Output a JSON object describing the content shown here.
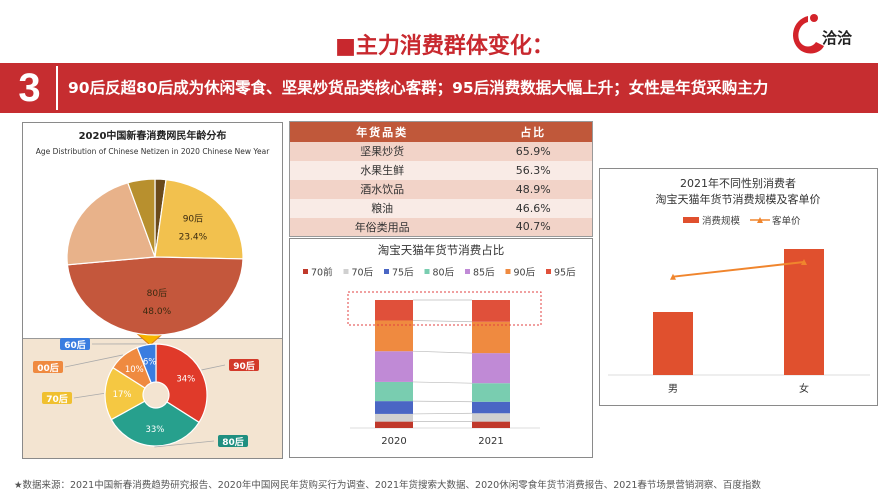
{
  "header": {
    "title": "■主力消费群体变化：",
    "logo_text": "洽洽"
  },
  "banner": {
    "number": "3",
    "text": "90后反超80后成为休闲零食、坚果炒货品类核心客群；95后消费数据大幅上升；女性是年货采购主力"
  },
  "colors": {
    "brand_red": "#c62d30",
    "table_header": "#c0583a"
  },
  "chart_data": [
    {
      "type": "pie",
      "title": "2020中国新春消费网民年龄分布",
      "subtitle": "Age Distribution of Chinese Netizen in 2020 Chinese New Year",
      "slices": [
        {
          "label": "",
          "value": 2,
          "color": "#6b4a1a"
        },
        {
          "label": "90后",
          "value": 23.4,
          "display": "23.4%",
          "color": "#f2c14e"
        },
        {
          "label": "80后",
          "value": 48.0,
          "display": "48.0%",
          "color": "#c4573c"
        },
        {
          "label": "",
          "value": 21.6,
          "color": "#e8b28a"
        },
        {
          "label": "",
          "value": 5,
          "color": "#b8902e"
        }
      ]
    },
    {
      "type": "pie",
      "style": "donut",
      "slices": [
        {
          "label": "90后",
          "value": 34,
          "display": "34%",
          "color": "#e03a2a"
        },
        {
          "label": "80后",
          "value": 33,
          "display": "33%",
          "color": "#27a08d"
        },
        {
          "label": "70后",
          "value": 17,
          "display": "17%",
          "color": "#f5c842"
        },
        {
          "label": "00后",
          "value": 10,
          "display": "10%",
          "color": "#ef8a40"
        },
        {
          "label": "60后",
          "value": 6,
          "display": "6%",
          "color": "#3a7de0"
        }
      ]
    },
    {
      "type": "table",
      "columns": [
        "年货品类",
        "占比"
      ],
      "rows": [
        [
          "坚果炒货",
          "65.9%"
        ],
        [
          "水果生鲜",
          "56.3%"
        ],
        [
          "酒水饮品",
          "48.9%"
        ],
        [
          "粮油",
          "46.6%"
        ],
        [
          "年俗类用品",
          "40.7%"
        ]
      ]
    },
    {
      "type": "bar",
      "stacked": true,
      "percent": true,
      "title": "淘宝天猫年货节消费占比",
      "legend_position": "top",
      "categories": [
        "2020",
        "2021"
      ],
      "series": [
        {
          "name": "70前",
          "values": [
            5,
            5
          ],
          "color": "#c0392b"
        },
        {
          "name": "70后",
          "values": [
            6,
            6.5
          ],
          "color": "#d0d0d0"
        },
        {
          "name": "75后",
          "values": [
            10,
            9
          ],
          "color": "#4a66c4"
        },
        {
          "name": "80后",
          "values": [
            15,
            14.5
          ],
          "color": "#79cdb0"
        },
        {
          "name": "85后",
          "values": [
            24,
            23.5
          ],
          "color": "#c08ad6"
        },
        {
          "name": "90后",
          "values": [
            24,
            24.5
          ],
          "color": "#ef8a40"
        },
        {
          "name": "95后",
          "values": [
            16,
            17
          ],
          "color": "#e0503a"
        }
      ]
    },
    {
      "type": "bar",
      "title": "2021年不同性别消费者\n淘宝天猫年货节消费规模及客单价",
      "legend_position": "top",
      "title_lines": [
        "2021年不同性别消费者",
        "淘宝天猫年货节消费规模及客单价"
      ],
      "categories": [
        "男",
        "女"
      ],
      "series": [
        {
          "name": "消费规模",
          "kind": "bar",
          "values": [
            50,
            100
          ],
          "color": "#e0502e"
        },
        {
          "name": "客单价",
          "kind": "line",
          "values": [
            87,
            100
          ],
          "color": "#f0852d"
        }
      ]
    }
  ],
  "footer": "★数据来源：2021中国新春消费趋势研究报告、2020年中国网民年货购买行为调查、2021年货搜索大数据、2020休闲零食年货节消费报告、2021春节场景营销洞察、百度指数"
}
